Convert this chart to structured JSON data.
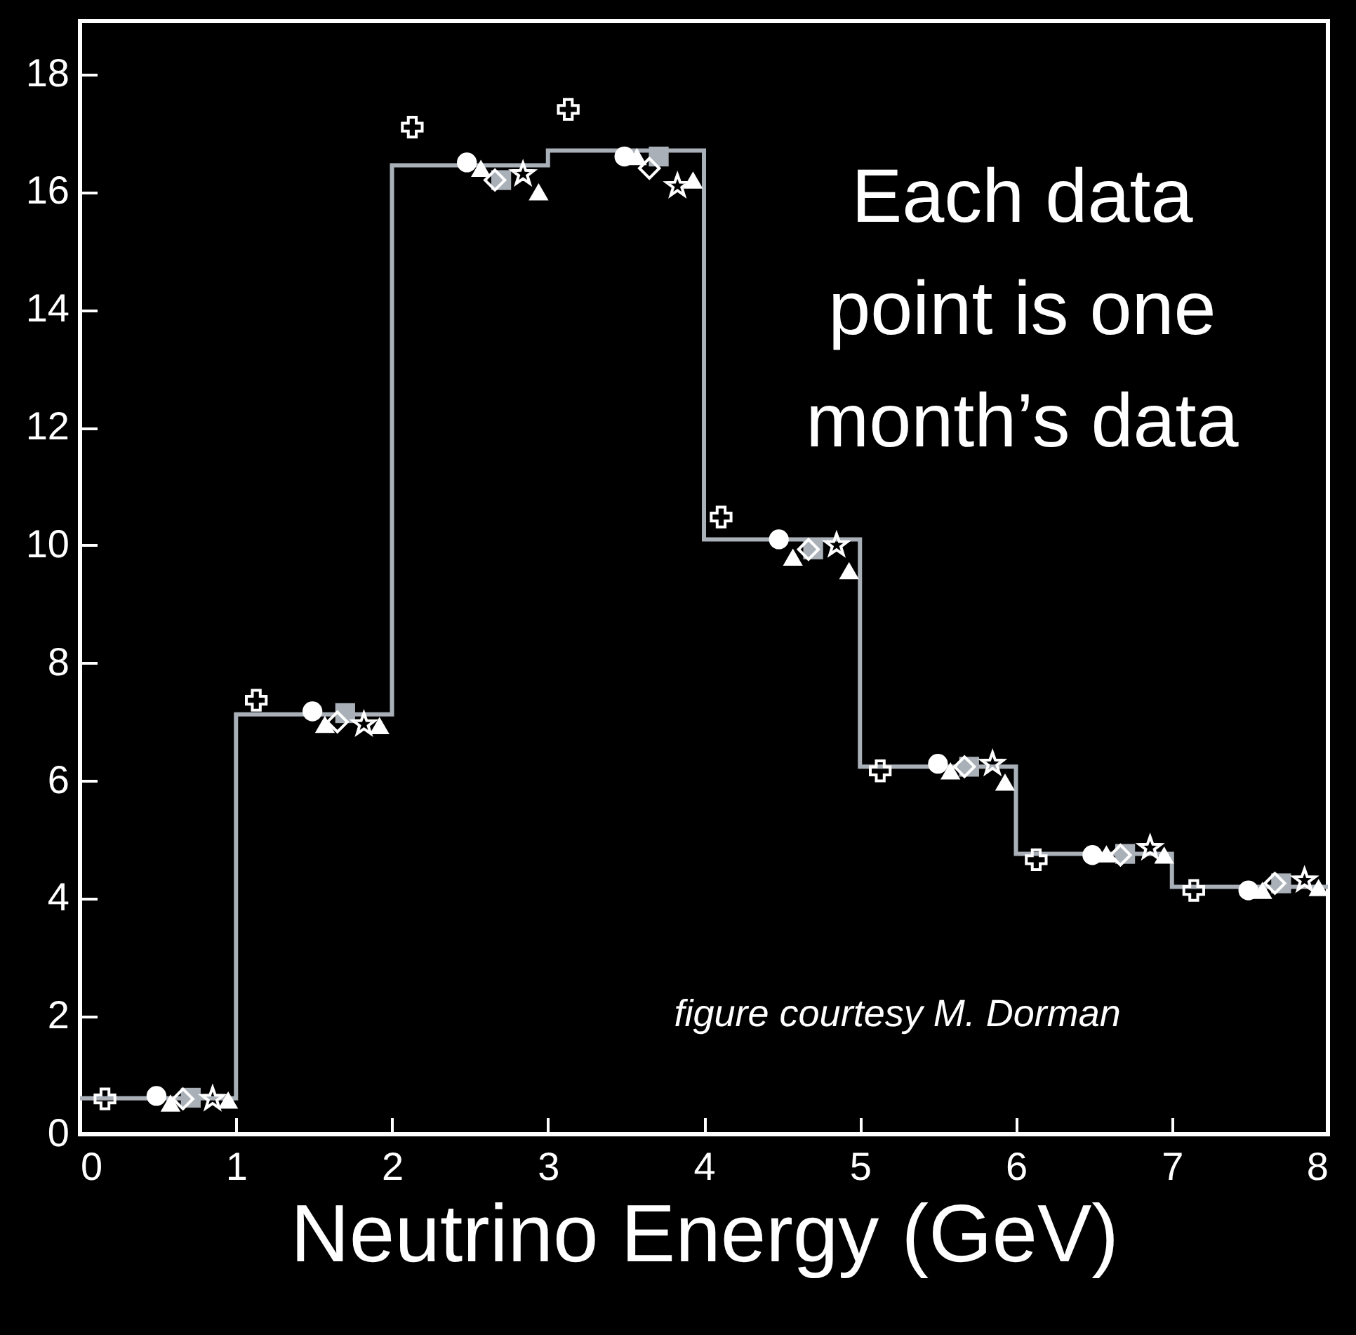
{
  "chart_data": {
    "type": "histogram",
    "xlabel": "Neutrino Energy (GeV)",
    "bins": [
      0,
      1,
      2,
      3,
      4,
      5,
      6,
      7,
      8
    ],
    "values": [
      0.61,
      7.13,
      16.45,
      16.7,
      10.1,
      6.24,
      4.76,
      4.2
    ],
    "color": "#a9b0b8",
    "xlim": [
      0,
      8
    ],
    "xticks": [
      0,
      1,
      2,
      3,
      4,
      5,
      6,
      7,
      8
    ],
    "ylim": [
      0,
      18.9
    ],
    "yticks": [
      0,
      2,
      4,
      6,
      8,
      10,
      12,
      14,
      16,
      18
    ],
    "grid": false,
    "annotations": [
      "Each data\npoint is one\nmonth’s data",
      "figure courtesy M. Dorman"
    ],
    "series": [
      {
        "type": "scatter",
        "marker": "cross",
        "color": "#ffffff",
        "x": [
          0.16,
          1.13,
          2.13,
          3.13,
          4.11,
          5.13,
          6.13,
          7.14
        ],
        "values": [
          0.6,
          7.37,
          17.1,
          17.4,
          10.48,
          6.17,
          4.66,
          4.14
        ]
      },
      {
        "type": "scatter",
        "marker": "circle",
        "color": "#ffffff",
        "x": [
          0.49,
          1.49,
          2.48,
          3.49,
          4.48,
          5.5,
          6.49,
          7.49
        ],
        "values": [
          0.65,
          7.18,
          16.5,
          16.6,
          10.1,
          6.29,
          4.74,
          4.14
        ]
      },
      {
        "type": "scatter",
        "marker": "triangle",
        "color": "#ffffff",
        "x": [
          0.58,
          1.57,
          2.57,
          3.57,
          4.57,
          5.58,
          6.58,
          7.58
        ],
        "values": [
          0.53,
          6.96,
          16.4,
          16.6,
          9.8,
          6.17,
          4.76,
          4.14
        ]
      },
      {
        "type": "scatter",
        "marker": "square",
        "color": "#a9b0b8",
        "x": [
          0.71,
          1.7,
          2.7,
          3.71,
          4.7,
          5.7,
          6.7,
          7.7
        ],
        "values": [
          0.62,
          7.15,
          16.2,
          16.6,
          9.93,
          6.24,
          4.76,
          4.26
        ]
      },
      {
        "type": "scatter",
        "marker": "diamond",
        "color": "#ffffff",
        "x": [
          0.66,
          1.65,
          2.66,
          3.65,
          4.67,
          5.67,
          6.67,
          7.66
        ],
        "values": [
          0.6,
          7.0,
          16.2,
          16.4,
          9.93,
          6.24,
          4.74,
          4.26
        ]
      },
      {
        "type": "scatter",
        "marker": "star",
        "color": "#ffffff",
        "x": [
          0.85,
          1.82,
          2.84,
          3.83,
          4.85,
          5.85,
          6.86,
          7.85
        ],
        "values": [
          0.6,
          6.96,
          16.3,
          16.1,
          10.0,
          6.29,
          4.86,
          4.31
        ]
      },
      {
        "type": "scatter",
        "marker": "triangle",
        "color": "#ffffff",
        "x": [
          0.95,
          1.92,
          2.94,
          3.93,
          4.93,
          5.93,
          6.95,
          7.94
        ],
        "values": [
          0.58,
          6.94,
          16.0,
          16.2,
          9.57,
          5.98,
          4.74,
          4.19
        ]
      }
    ]
  }
}
